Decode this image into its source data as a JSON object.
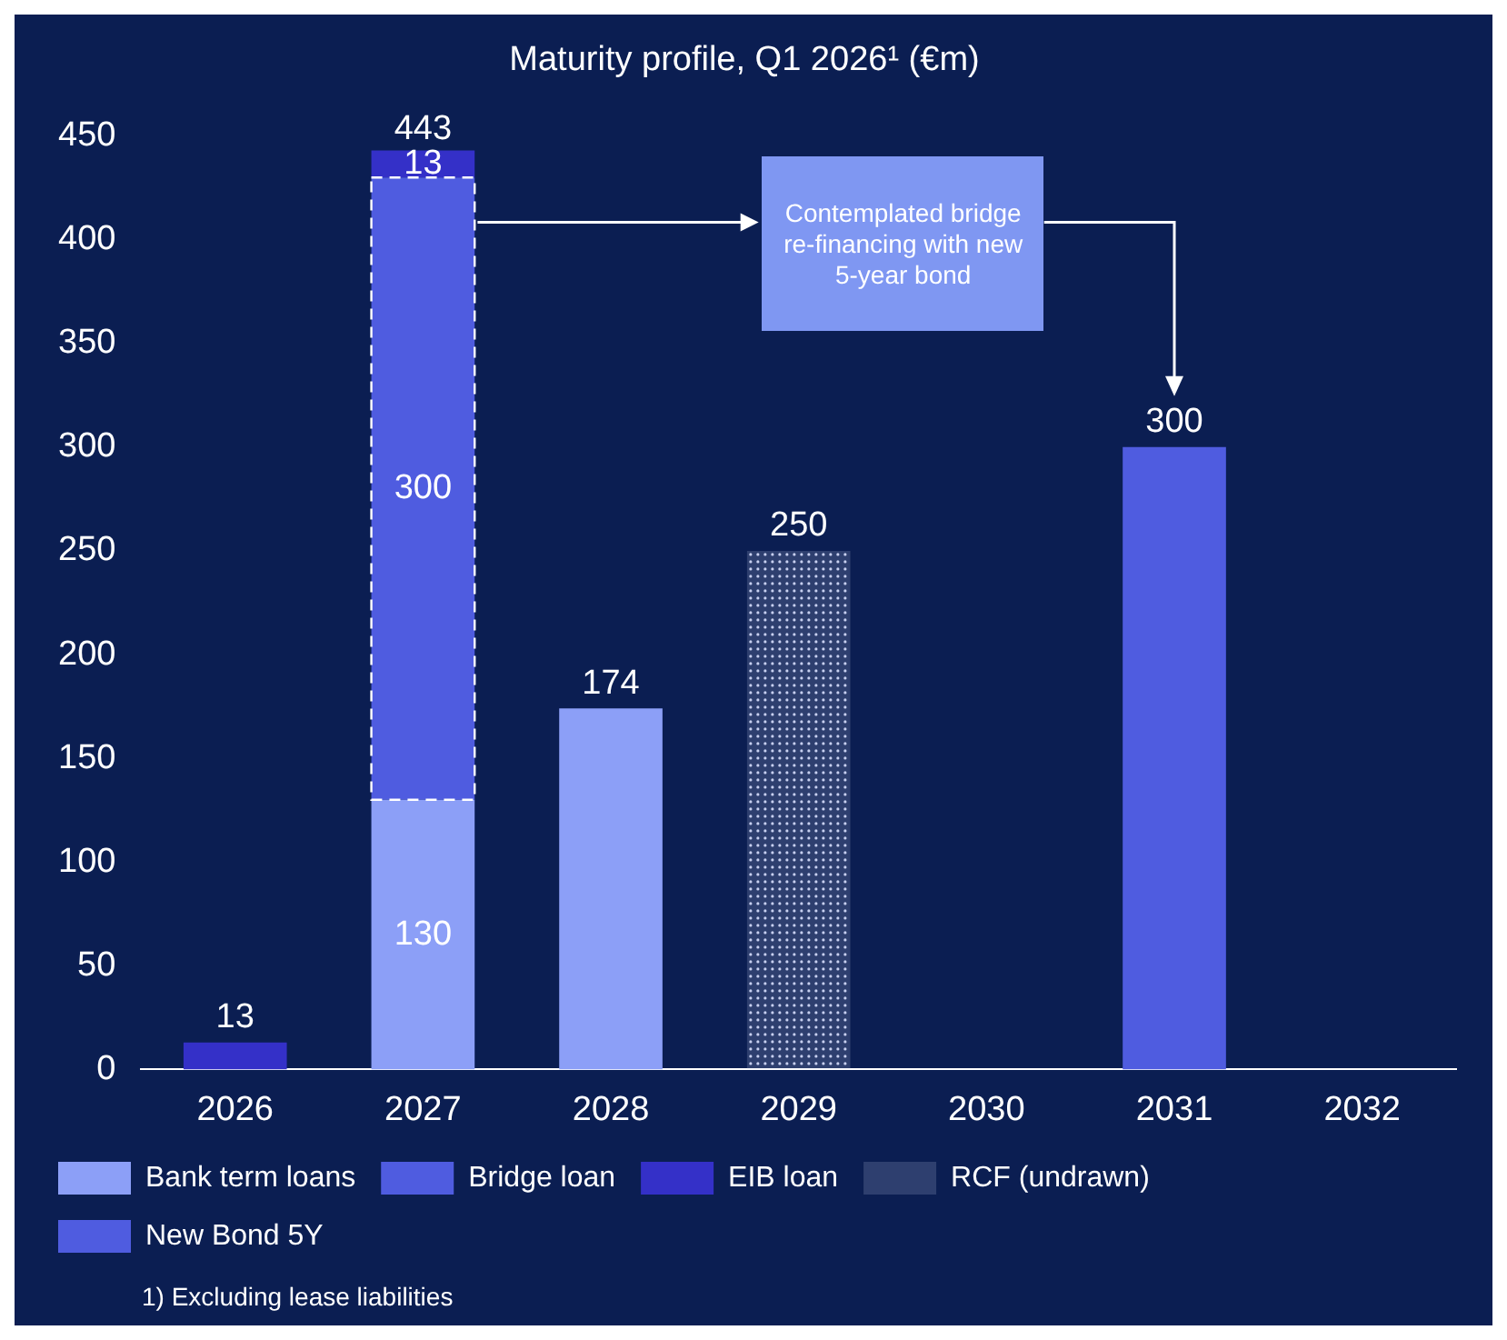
{
  "chart_data": {
    "type": "bar",
    "title": "Maturity profile, Q1 2026¹ (€m)",
    "categories": [
      "2026",
      "2027",
      "2028",
      "2029",
      "2030",
      "2031",
      "2032"
    ],
    "stacked": true,
    "series": [
      {
        "name": "Bank term loans",
        "color": "#8c9ff7",
        "values": [
          null,
          130,
          174,
          null,
          null,
          null,
          null
        ]
      },
      {
        "name": "Bridge loan",
        "color": "#4f5ce0",
        "line_style": "dashed",
        "values": [
          null,
          300,
          null,
          null,
          null,
          null,
          null
        ]
      },
      {
        "name": "EIB loan",
        "color": "#3430c8",
        "values": [
          13,
          13,
          null,
          null,
          null,
          null,
          null
        ]
      },
      {
        "name": "RCF (undrawn)",
        "color": "#c8d0f0",
        "line_style": "dotted",
        "values": [
          null,
          null,
          null,
          250,
          null,
          null,
          null
        ]
      },
      {
        "name": "New Bond 5Y",
        "color": "#4f5ce0",
        "values": [
          null,
          null,
          null,
          null,
          null,
          300,
          null
        ]
      }
    ],
    "totals": [
      null,
      "443",
      null,
      null,
      null,
      null,
      null
    ],
    "data_labels": true,
    "ylim": [
      0,
      450
    ],
    "yticks": [
      0,
      50,
      100,
      150,
      200,
      250,
      300,
      350,
      400,
      450
    ],
    "grid": false,
    "legend": "bottom",
    "annotations": [
      "Contemplated bridge re-financing with new 5-year bond",
      "1) Excluding lease liabilities"
    ]
  }
}
